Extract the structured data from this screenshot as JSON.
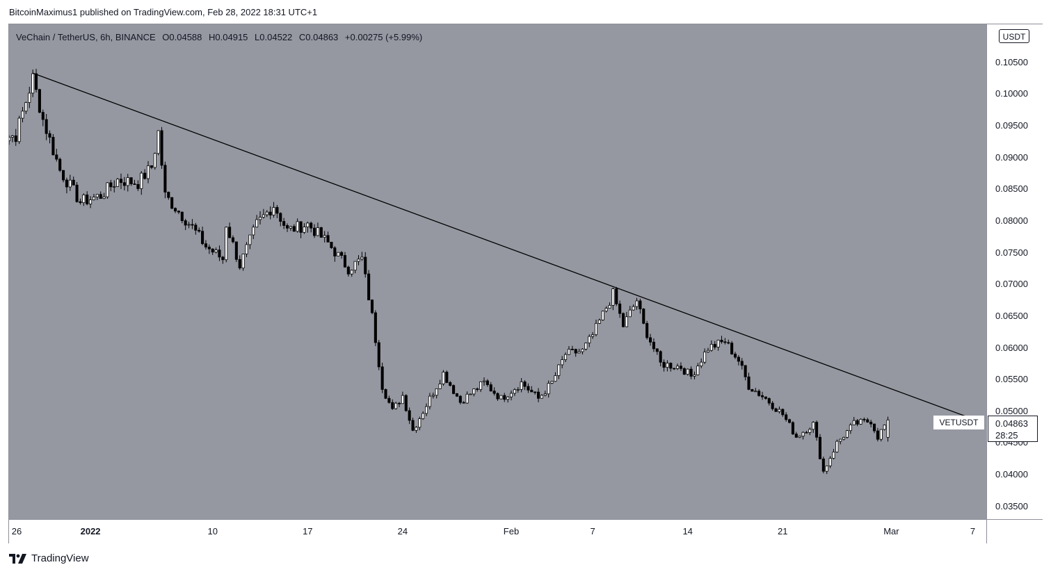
{
  "publisher_line": "BitcoinMaximus1 published on TradingView.com, Feb 28, 2022 18:31 UTC+1",
  "legend": {
    "symbol": "VeChain / TetherUS, 6h, BINANCE",
    "open_label": "O",
    "open": "0.04588",
    "high_label": "H",
    "high": "0.04915",
    "low_label": "L",
    "low": "0.04522",
    "close_label": "C",
    "close": "0.04863",
    "change": "+0.00275 (+5.99%)"
  },
  "currency_button": "USDT",
  "symbol_tag": "VETUSDT",
  "price_tag": {
    "price": "0.04863",
    "countdown": "28:25"
  },
  "footer_brand": "TradingView",
  "y_ticks": [
    "0.10500",
    "0.10000",
    "0.09500",
    "0.09000",
    "0.08500",
    "0.08000",
    "0.07500",
    "0.07000",
    "0.06500",
    "0.06000",
    "0.05500",
    "0.05000",
    "0.04500",
    "0.04000",
    "0.03500"
  ],
  "x_ticks": [
    {
      "label": "26",
      "bold": false
    },
    {
      "label": "2022",
      "bold": true
    },
    {
      "label": "10",
      "bold": false
    },
    {
      "label": "17",
      "bold": false
    },
    {
      "label": "24",
      "bold": false
    },
    {
      "label": "Feb",
      "bold": false
    },
    {
      "label": "7",
      "bold": false
    },
    {
      "label": "14",
      "bold": false
    },
    {
      "label": "21",
      "bold": false
    },
    {
      "label": "Mar",
      "bold": false
    },
    {
      "label": "7",
      "bold": false
    }
  ],
  "colors": {
    "plot_bg": "#9598a1",
    "candle_up": "#ffffff",
    "candle_down": "#000000",
    "trendline": "#000000"
  },
  "chart_data": {
    "type": "candlestick",
    "title": "VeChain / TetherUS, 6h, BINANCE",
    "interval": "6h",
    "ylim": [
      0.033,
      0.111
    ],
    "x_range": [
      "2021-12-26",
      "2022-03-08"
    ],
    "trendline": {
      "from": {
        "x": "2021-12-27T18:00",
        "y": 0.1033
      },
      "to": {
        "x": "2022-03-07",
        "y": 0.0488
      }
    },
    "anchors": [
      {
        "x": "2021-12-25T00:00",
        "y": 0.093
      },
      {
        "x": "2021-12-26T12:00",
        "y": 0.0935
      },
      {
        "x": "2021-12-27T18:00",
        "y": 0.1025
      },
      {
        "x": "2021-12-28T12:00",
        "y": 0.096
      },
      {
        "x": "2021-12-29T18:00",
        "y": 0.088
      },
      {
        "x": "2021-12-31T06:00",
        "y": 0.083
      },
      {
        "x": "2022-01-01T18:00",
        "y": 0.084
      },
      {
        "x": "2022-01-03T00:00",
        "y": 0.0865
      },
      {
        "x": "2022-01-04T12:00",
        "y": 0.086
      },
      {
        "x": "2022-01-05T12:00",
        "y": 0.0885
      },
      {
        "x": "2022-01-06T00:00",
        "y": 0.094
      },
      {
        "x": "2022-01-06T12:00",
        "y": 0.084
      },
      {
        "x": "2022-01-08T12:00",
        "y": 0.079
      },
      {
        "x": "2022-01-09T12:00",
        "y": 0.076
      },
      {
        "x": "2022-01-10T18:00",
        "y": 0.074
      },
      {
        "x": "2022-01-11T00:00",
        "y": 0.0795
      },
      {
        "x": "2022-01-12T00:00",
        "y": 0.073
      },
      {
        "x": "2022-01-13T06:00",
        "y": 0.0795
      },
      {
        "x": "2022-01-14T12:00",
        "y": 0.0825
      },
      {
        "x": "2022-01-15T12:00",
        "y": 0.0785
      },
      {
        "x": "2022-01-17T00:00",
        "y": 0.0795
      },
      {
        "x": "2022-01-18T12:00",
        "y": 0.0765
      },
      {
        "x": "2022-01-20T00:00",
        "y": 0.0725
      },
      {
        "x": "2022-01-21T00:00",
        "y": 0.074
      },
      {
        "x": "2022-01-21T18:00",
        "y": 0.065
      },
      {
        "x": "2022-01-22T12:00",
        "y": 0.054
      },
      {
        "x": "2022-01-23T06:00",
        "y": 0.05
      },
      {
        "x": "2022-01-24T00:00",
        "y": 0.0525
      },
      {
        "x": "2022-01-24T18:00",
        "y": 0.047
      },
      {
        "x": "2022-01-26T06:00",
        "y": 0.053
      },
      {
        "x": "2022-01-27T00:00",
        "y": 0.056
      },
      {
        "x": "2022-01-28T06:00",
        "y": 0.0515
      },
      {
        "x": "2022-01-30T00:00",
        "y": 0.0545
      },
      {
        "x": "2022-01-31T06:00",
        "y": 0.052
      },
      {
        "x": "2022-02-01T18:00",
        "y": 0.0545
      },
      {
        "x": "2022-02-03T00:00",
        "y": 0.052
      },
      {
        "x": "2022-02-04T00:00",
        "y": 0.0545
      },
      {
        "x": "2022-02-05T00:00",
        "y": 0.059
      },
      {
        "x": "2022-02-06T06:00",
        "y": 0.0595
      },
      {
        "x": "2022-02-07T00:00",
        "y": 0.062
      },
      {
        "x": "2022-02-08T12:00",
        "y": 0.0685
      },
      {
        "x": "2022-02-09T06:00",
        "y": 0.0635
      },
      {
        "x": "2022-02-10T06:00",
        "y": 0.0675
      },
      {
        "x": "2022-02-10T18:00",
        "y": 0.0635
      },
      {
        "x": "2022-02-12T00:00",
        "y": 0.0575
      },
      {
        "x": "2022-02-13T12:00",
        "y": 0.057
      },
      {
        "x": "2022-02-14T06:00",
        "y": 0.0555
      },
      {
        "x": "2022-02-15T12:00",
        "y": 0.06
      },
      {
        "x": "2022-02-16T18:00",
        "y": 0.061
      },
      {
        "x": "2022-02-17T18:00",
        "y": 0.058
      },
      {
        "x": "2022-02-18T12:00",
        "y": 0.054
      },
      {
        "x": "2022-02-19T18:00",
        "y": 0.052
      },
      {
        "x": "2022-02-21T00:00",
        "y": 0.0495
      },
      {
        "x": "2022-02-22T00:00",
        "y": 0.046
      },
      {
        "x": "2022-02-23T06:00",
        "y": 0.048
      },
      {
        "x": "2022-02-24T00:00",
        "y": 0.0405
      },
      {
        "x": "2022-02-25T00:00",
        "y": 0.045
      },
      {
        "x": "2022-02-26T06:00",
        "y": 0.048
      },
      {
        "x": "2022-02-27T12:00",
        "y": 0.0485
      },
      {
        "x": "2022-02-28T00:00",
        "y": 0.046
      },
      {
        "x": "2022-02-28T18:00",
        "y": 0.0486
      }
    ],
    "last_candle": {
      "open": 0.04588,
      "high": 0.04915,
      "low": 0.04522,
      "close": 0.04863
    }
  }
}
